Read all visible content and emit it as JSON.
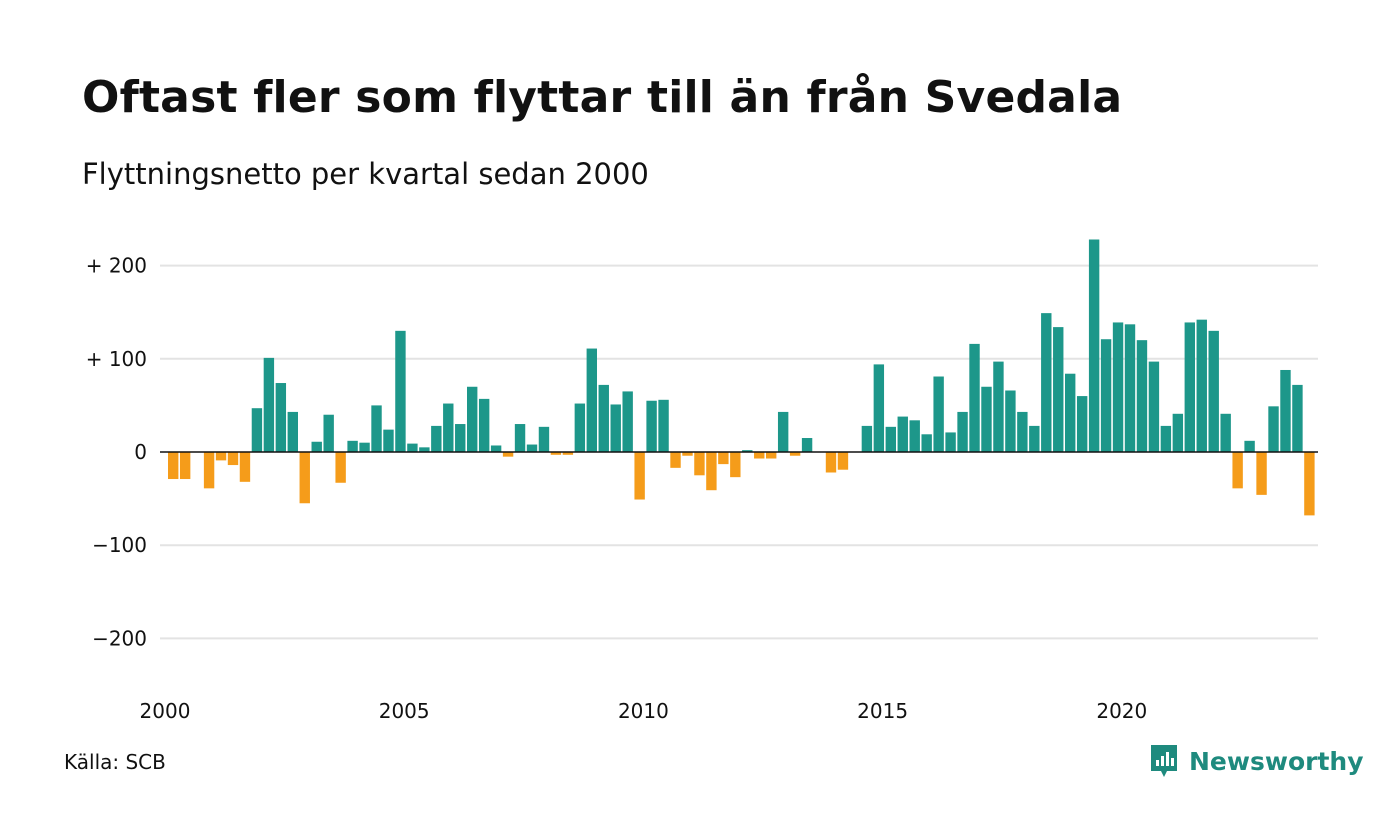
{
  "header": {
    "title": "Oftast fler som flyttar till än från Svedala",
    "subtitle": "Flyttningsnetto per kvartal sedan 2000"
  },
  "footer": {
    "source": "Källa: SCB",
    "brand": "Newsworthy"
  },
  "colors": {
    "positive": "#1d978a",
    "negative": "#f59c1a",
    "grid": "#e3e3e3",
    "zero_line": "#111111",
    "brand": "#1e8a7e"
  },
  "chart_data": {
    "type": "bar",
    "title": "Oftast fler som flyttar till än från Svedala",
    "subtitle": "Flyttningsnetto per kvartal sedan 2000",
    "xlabel": "",
    "ylabel": "",
    "ylim": [
      -240,
      240
    ],
    "y_ticks": [
      {
        "value": 200,
        "label": "+ 200"
      },
      {
        "value": 100,
        "label": "+ 100"
      },
      {
        "value": 0,
        "label": "0"
      },
      {
        "value": -100,
        "label": "−100"
      },
      {
        "value": -200,
        "label": "−200"
      }
    ],
    "x_ticks": [
      "2000",
      "2005",
      "2010",
      "2015",
      "2020"
    ],
    "grid": true,
    "start_year": 2000,
    "values": [
      -29,
      -29,
      0,
      -39,
      -9,
      -14,
      -32,
      47,
      101,
      74,
      43,
      -55,
      11,
      40,
      -33,
      12,
      10,
      50,
      24,
      130,
      9,
      5,
      28,
      52,
      30,
      70,
      57,
      7,
      -5,
      30,
      8,
      27,
      -3,
      -3,
      52,
      111,
      72,
      51,
      65,
      -51,
      55,
      56,
      -17,
      -4,
      -25,
      -41,
      -13,
      -27,
      2,
      -7,
      -7,
      43,
      -4,
      15,
      0,
      -22,
      -19,
      0,
      28,
      94,
      27,
      38,
      34,
      19,
      81,
      21,
      43,
      116,
      70,
      97,
      66,
      43,
      28,
      149,
      134,
      84,
      60,
      228,
      121,
      139,
      137,
      120,
      97,
      28,
      41,
      139,
      142,
      130,
      41,
      -39,
      12,
      -46,
      49,
      88,
      72,
      -68
    ]
  }
}
